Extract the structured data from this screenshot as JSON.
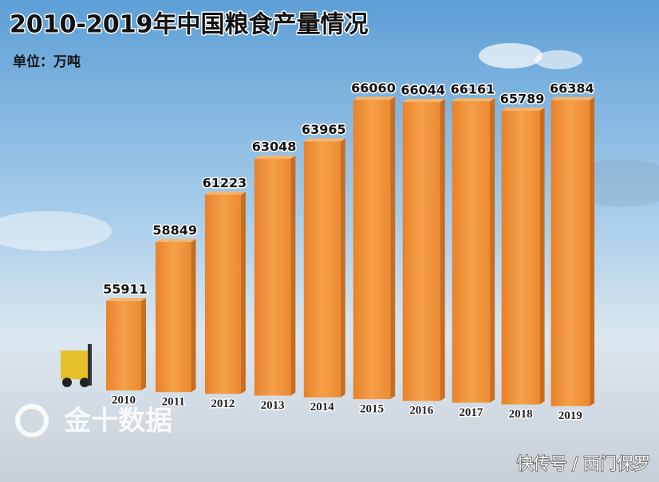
{
  "chart_data": {
    "type": "bar",
    "title": "2010-2019年中国粮食产量情况",
    "subtitle": "单位：万吨",
    "categories": [
      "2010",
      "2011",
      "2012",
      "2013",
      "2014",
      "2015",
      "2016",
      "2017",
      "2018",
      "2019"
    ],
    "values": [
      55911,
      58849,
      61223,
      63048,
      63965,
      66060,
      66044,
      66161,
      65789,
      66384
    ],
    "color": "#f0922e"
  },
  "watermark": "金十数据",
  "footer": "快传号 / 西门保罗"
}
